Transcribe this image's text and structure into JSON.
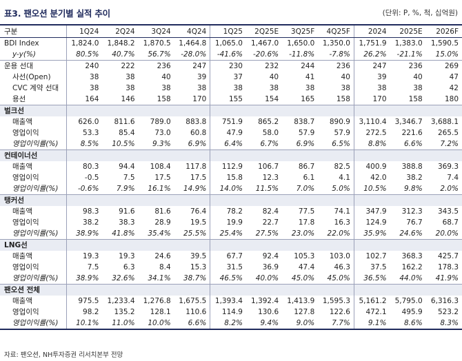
{
  "title": "표3. 팬오션 분기별 실적 추이",
  "unit": "(단위: P, %, 척, 십억원)",
  "header": [
    "구분",
    "1Q24",
    "2Q24",
    "3Q24",
    "4Q24",
    "1Q25",
    "2Q25E",
    "3Q25F",
    "4Q25F",
    "2024",
    "2025E",
    "2026F"
  ],
  "rows": [
    {
      "type": "top",
      "label": "BDI Index",
      "v": [
        "1,824.0",
        "1,848.2",
        "1,870.5",
        "1,464.8",
        "1,065.0",
        "1,467.0",
        "1,650.0",
        "1,350.0",
        "1,751.9",
        "1,383.0",
        "1,590.5"
      ]
    },
    {
      "type": "pctsub",
      "label": "y-y(%)",
      "v": [
        "80.5%",
        "40.7%",
        "56.7%",
        "-28.0%",
        "-41.6%",
        "-20.6%",
        "-11.8%",
        "-7.8%",
        "26.2%",
        "-21.1%",
        "15.0%"
      ]
    },
    {
      "type": "top",
      "label": "운용 선대",
      "v": [
        "240",
        "222",
        "236",
        "247",
        "230",
        "232",
        "244",
        "236",
        "247",
        "236",
        "269"
      ]
    },
    {
      "type": "sub",
      "label": "사선(Open)",
      "v": [
        "38",
        "38",
        "40",
        "39",
        "37",
        "40",
        "41",
        "40",
        "39",
        "40",
        "47"
      ]
    },
    {
      "type": "sub",
      "label": "CVC 계약 선대",
      "v": [
        "38",
        "38",
        "38",
        "38",
        "38",
        "38",
        "38",
        "38",
        "38",
        "38",
        "42"
      ]
    },
    {
      "type": "sub",
      "label": "용선",
      "v": [
        "164",
        "146",
        "158",
        "170",
        "155",
        "154",
        "165",
        "158",
        "170",
        "158",
        "180"
      ]
    },
    {
      "type": "sec",
      "label": "벌크선",
      "v": [
        "",
        "",
        "",
        "",
        "",
        "",
        "",
        "",
        "",
        "",
        ""
      ]
    },
    {
      "type": "sub",
      "label": "매출액",
      "v": [
        "626.0",
        "811.6",
        "789.0",
        "883.8",
        "751.9",
        "865.2",
        "838.7",
        "890.9",
        "3,110.4",
        "3,346.7",
        "3,688.1"
      ]
    },
    {
      "type": "sub",
      "label": "영업이익",
      "v": [
        "53.3",
        "85.4",
        "73.0",
        "60.8",
        "47.9",
        "58.0",
        "57.9",
        "57.9",
        "272.5",
        "221.6",
        "265.5"
      ]
    },
    {
      "type": "pctsub",
      "label": "영업이익률(%)",
      "v": [
        "8.5%",
        "10.5%",
        "9.3%",
        "6.9%",
        "6.4%",
        "6.7%",
        "6.9%",
        "6.5%",
        "8.8%",
        "6.6%",
        "7.2%"
      ]
    },
    {
      "type": "sec",
      "label": "컨테이너선",
      "v": [
        "",
        "",
        "",
        "",
        "",
        "",
        "",
        "",
        "",
        "",
        ""
      ]
    },
    {
      "type": "sub",
      "label": "매출액",
      "v": [
        "80.3",
        "94.4",
        "108.4",
        "117.8",
        "112.9",
        "106.7",
        "86.7",
        "82.5",
        "400.9",
        "388.8",
        "369.3"
      ]
    },
    {
      "type": "sub",
      "label": "영업이익",
      "v": [
        "-0.5",
        "7.5",
        "17.5",
        "17.5",
        "15.8",
        "12.3",
        "6.1",
        "4.1",
        "42.0",
        "38.2",
        "7.4"
      ]
    },
    {
      "type": "pctsub",
      "label": "영업이익률(%)",
      "v": [
        "-0.6%",
        "7.9%",
        "16.1%",
        "14.9%",
        "14.0%",
        "11.5%",
        "7.0%",
        "5.0%",
        "10.5%",
        "9.8%",
        "2.0%"
      ]
    },
    {
      "type": "sec",
      "label": "탱커선",
      "v": [
        "",
        "",
        "",
        "",
        "",
        "",
        "",
        "",
        "",
        "",
        ""
      ]
    },
    {
      "type": "sub",
      "label": "매출액",
      "v": [
        "98.3",
        "91.6",
        "81.6",
        "76.4",
        "78.2",
        "82.4",
        "77.5",
        "74.1",
        "347.9",
        "312.3",
        "343.5"
      ]
    },
    {
      "type": "sub",
      "label": "영업이익",
      "v": [
        "38.2",
        "38.3",
        "28.9",
        "19.5",
        "19.9",
        "22.7",
        "17.8",
        "16.3",
        "124.9",
        "76.7",
        "68.7"
      ]
    },
    {
      "type": "pctsub",
      "label": "영업이익률(%)",
      "v": [
        "38.9%",
        "41.8%",
        "35.4%",
        "25.5%",
        "25.4%",
        "27.5%",
        "23.0%",
        "22.0%",
        "35.9%",
        "24.6%",
        "20.0%"
      ]
    },
    {
      "type": "sec",
      "label": "LNG선",
      "v": [
        "",
        "",
        "",
        "",
        "",
        "",
        "",
        "",
        "",
        "",
        ""
      ]
    },
    {
      "type": "sub",
      "label": "매출액",
      "v": [
        "19.3",
        "19.3",
        "24.6",
        "39.5",
        "67.7",
        "92.4",
        "105.3",
        "103.0",
        "102.7",
        "368.3",
        "425.7"
      ]
    },
    {
      "type": "sub",
      "label": "영업이익",
      "v": [
        "7.5",
        "6.3",
        "8.4",
        "15.3",
        "31.5",
        "36.9",
        "47.4",
        "46.3",
        "37.5",
        "162.2",
        "178.3"
      ]
    },
    {
      "type": "pctsub",
      "label": "영업이익률(%)",
      "v": [
        "38.9%",
        "32.6%",
        "34.1%",
        "38.7%",
        "46.5%",
        "40.0%",
        "45.0%",
        "45.0%",
        "36.5%",
        "44.0%",
        "41.9%"
      ]
    },
    {
      "type": "sec",
      "label": "팬오션 전체",
      "v": [
        "",
        "",
        "",
        "",
        "",
        "",
        "",
        "",
        "",
        "",
        ""
      ]
    },
    {
      "type": "sub",
      "label": "매출액",
      "v": [
        "975.5",
        "1,233.4",
        "1,276.8",
        "1,675.5",
        "1,393.4",
        "1,392.4",
        "1,413.9",
        "1,595.3",
        "5,161.2",
        "5,795.0",
        "6,316.3"
      ]
    },
    {
      "type": "sub",
      "label": "영업이익",
      "v": [
        "98.2",
        "135.2",
        "128.1",
        "110.6",
        "114.9",
        "130.6",
        "127.8",
        "122.6",
        "472.1",
        "495.9",
        "523.2"
      ]
    },
    {
      "type": "pctsub",
      "label": "영업이익률(%)",
      "v": [
        "10.1%",
        "11.0%",
        "10.0%",
        "6.6%",
        "8.2%",
        "9.4%",
        "9.0%",
        "7.7%",
        "9.1%",
        "8.6%",
        "8.3%"
      ]
    }
  ],
  "source": "자료: 팬오션, NH투자증권 리서치본부 전망"
}
